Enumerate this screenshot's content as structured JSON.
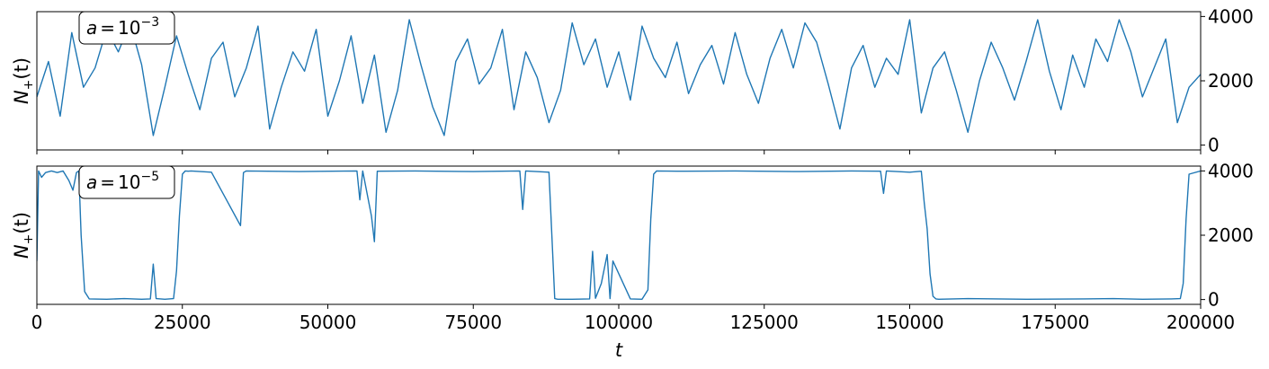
{
  "chart_data": [
    {
      "type": "line",
      "panel": "top",
      "annotation": "a = 10^-3",
      "annotation_parts": {
        "prefix": "a",
        "eq": "=",
        "base": "10",
        "exp": "−3"
      },
      "ylabel": "N₊(t)",
      "ylabel_parts": {
        "main": "N",
        "sub": "+",
        "tail": "(t)"
      },
      "xlim": [
        0,
        200000
      ],
      "ylim": [
        -150,
        4150
      ],
      "yticks": [
        0,
        2000,
        4000
      ],
      "ytick_labels": [
        "0",
        "2000",
        "4000"
      ],
      "ytick_side": "right",
      "color": "#1f77b4",
      "series": [
        {
          "x": [
            0,
            2000,
            4000,
            6000,
            8000,
            10000,
            12000,
            14000,
            16000,
            18000,
            20000,
            22000,
            24000,
            26000,
            28000,
            30000,
            32000,
            34000,
            36000,
            38000,
            40000,
            42000,
            44000,
            46000,
            48000,
            50000,
            52000,
            54000,
            56000,
            58000,
            60000,
            62000,
            64000,
            66000,
            68000,
            70000,
            72000,
            74000,
            76000,
            78000,
            80000,
            82000,
            84000,
            86000,
            88000,
            90000,
            92000,
            94000,
            96000,
            98000,
            100000,
            102000,
            104000,
            106000,
            108000,
            110000,
            112000,
            114000,
            116000,
            118000,
            120000,
            122000,
            124000,
            126000,
            128000,
            130000,
            132000,
            134000,
            136000,
            138000,
            140000,
            142000,
            144000,
            146000,
            148000,
            150000,
            152000,
            154000,
            156000,
            158000,
            160000,
            162000,
            164000,
            166000,
            168000,
            170000,
            172000,
            174000,
            176000,
            178000,
            180000,
            182000,
            184000,
            186000,
            188000,
            190000,
            192000,
            194000,
            196000,
            198000,
            200000
          ],
          "y": [
            1500,
            2600,
            900,
            3500,
            1800,
            2400,
            3600,
            2900,
            3800,
            2500,
            300,
            1800,
            3400,
            2200,
            1100,
            2700,
            3200,
            1500,
            2400,
            3700,
            500,
            1800,
            2900,
            2300,
            3600,
            900,
            2000,
            3400,
            1300,
            2800,
            400,
            1700,
            3900,
            2500,
            1200,
            300,
            2600,
            3300,
            1900,
            2400,
            3600,
            1100,
            2900,
            2100,
            700,
            1700,
            3800,
            2500,
            3300,
            1800,
            2900,
            1400,
            3700,
            2700,
            2100,
            3200,
            1600,
            2500,
            3100,
            1900,
            3500,
            2200,
            1300,
            2700,
            3600,
            2400,
            3800,
            3200,
            1900,
            500,
            2400,
            3100,
            1800,
            2700,
            2200,
            3900,
            1000,
            2400,
            2900,
            1700,
            400,
            2000,
            3200,
            2400,
            1400,
            2600,
            3900,
            2300,
            1100,
            2800,
            1800,
            3300,
            2600,
            3900,
            2900,
            1500,
            2400,
            3300,
            700,
            1800,
            2200
          ]
        }
      ]
    },
    {
      "type": "line",
      "panel": "bottom",
      "annotation": "a = 10^-5",
      "annotation_parts": {
        "prefix": "a",
        "eq": "=",
        "base": "10",
        "exp": "−5"
      },
      "ylabel": "N₊(t)",
      "ylabel_parts": {
        "main": "N",
        "sub": "+",
        "tail": "(t)"
      },
      "xlabel": "t",
      "xlim": [
        0,
        200000
      ],
      "ylim": [
        -150,
        4150
      ],
      "yticks": [
        0,
        2000,
        4000
      ],
      "ytick_labels": [
        "0",
        "2000",
        "4000"
      ],
      "ytick_side": "right",
      "xticks": [
        0,
        25000,
        50000,
        75000,
        100000,
        125000,
        150000,
        175000,
        200000
      ],
      "xtick_labels": [
        "0",
        "25000",
        "50000",
        "75000",
        "100000",
        "125000",
        "150000",
        "175000",
        "200000"
      ],
      "color": "#1f77b4",
      "series": [
        {
          "x": [
            0,
            300,
            800,
            1500,
            2500,
            3500,
            4500,
            5500,
            6200,
            6800,
            7200,
            7600,
            8200,
            9000,
            12000,
            15000,
            18000,
            19500,
            20000,
            20500,
            22000,
            23500,
            24000,
            24500,
            25000,
            25500,
            26000,
            26500,
            30000,
            35000,
            35500,
            36000,
            45000,
            55000,
            55500,
            56000,
            57500,
            58000,
            58500,
            65000,
            75000,
            83000,
            83500,
            84000,
            88000,
            88500,
            89000,
            89500,
            92000,
            95000,
            95500,
            96000,
            97000,
            98000,
            98500,
            99000,
            102000,
            104000,
            105000,
            105500,
            106000,
            106500,
            110000,
            120000,
            130000,
            140000,
            145000,
            145500,
            146000,
            150000,
            152000,
            152500,
            153000,
            153500,
            154000,
            154500,
            155000,
            160000,
            170000,
            180000,
            185000,
            190000,
            195000,
            196500,
            197000,
            197500,
            198000,
            200000
          ],
          "y": [
            1200,
            4000,
            3800,
            3950,
            4000,
            3950,
            4000,
            3700,
            3400,
            3950,
            4000,
            2000,
            250,
            20,
            10,
            30,
            10,
            20,
            1100,
            30,
            10,
            30,
            900,
            2600,
            3900,
            4000,
            3990,
            4000,
            3960,
            2300,
            3950,
            4000,
            3980,
            4000,
            3100,
            4000,
            2600,
            1800,
            3990,
            4000,
            3980,
            4000,
            2800,
            4000,
            3960,
            2000,
            30,
            10,
            10,
            20,
            1500,
            40,
            500,
            1400,
            30,
            1200,
            20,
            10,
            300,
            2500,
            3900,
            4000,
            3990,
            4000,
            3980,
            4000,
            3990,
            3300,
            4000,
            3960,
            3990,
            3000,
            2200,
            800,
            100,
            20,
            10,
            30,
            10,
            20,
            30,
            10,
            20,
            30,
            500,
            2500,
            3900,
            4000
          ]
        }
      ]
    }
  ]
}
